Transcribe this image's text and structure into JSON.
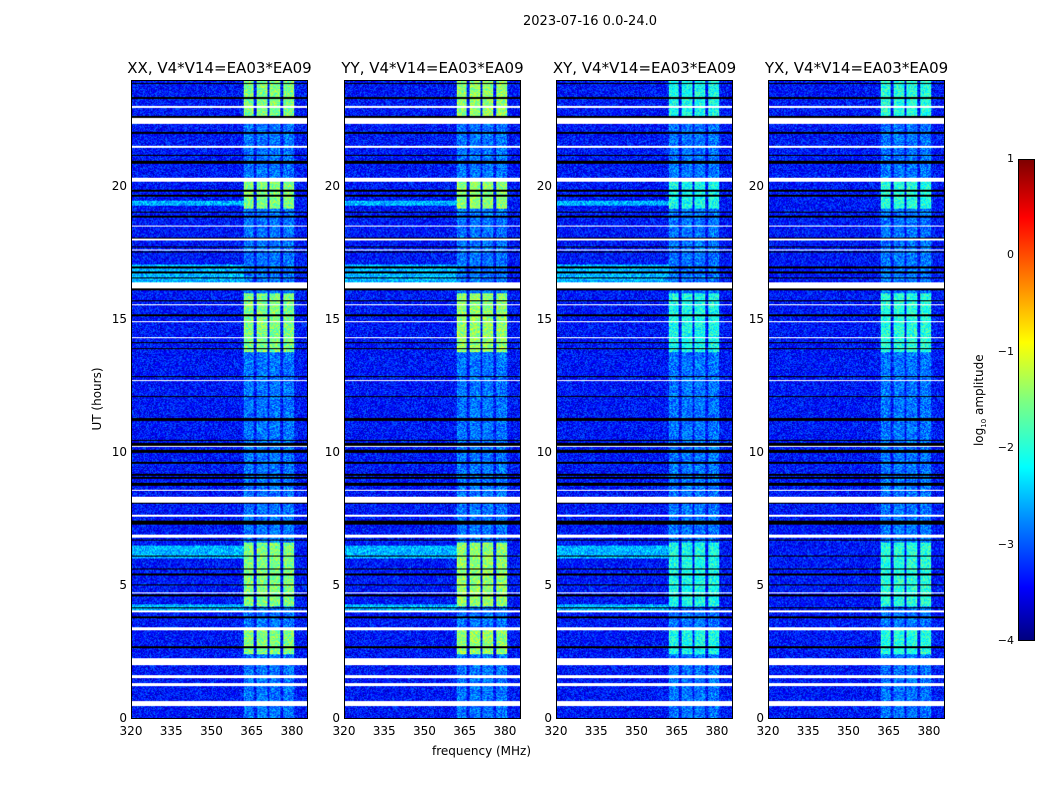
{
  "chart_data": {
    "type": "heatmap",
    "title": "2023-07-16 0.0-24.0",
    "ylabel": "UT (hours)",
    "xlabel": "frequency (MHz)",
    "xlim": [
      320,
      386
    ],
    "ylim": [
      0,
      24
    ],
    "xticks": [
      "320",
      "335",
      "350",
      "365",
      "380"
    ],
    "xtick_values": [
      320,
      335,
      350,
      365,
      380
    ],
    "yticks": [
      "0",
      "5",
      "10",
      "15",
      "20"
    ],
    "ytick_values": [
      0,
      5,
      10,
      15,
      20
    ],
    "panels": [
      {
        "title": "XX, V4*V14=EA03*EA09",
        "bright_level": -1.3
      },
      {
        "title": "YY, V4*V14=EA03*EA09",
        "bright_level": -1.2
      },
      {
        "title": "XY, V4*V14=EA03*EA09",
        "bright_level": -1.9
      },
      {
        "title": "YX, V4*V14=EA03*EA09",
        "bright_level": -1.8
      }
    ],
    "background_level": -3.3,
    "rfi_channels_mhz": [
      [
        362,
        366
      ],
      [
        367,
        371
      ],
      [
        372,
        376
      ],
      [
        377,
        381
      ]
    ],
    "rfi_bright_ut_hours": [
      [
        2.4,
        3.3
      ],
      [
        4.2,
        6.6
      ],
      [
        13.8,
        16.0
      ],
      [
        19.2,
        20.2
      ],
      [
        22.4,
        24.0
      ]
    ],
    "broadband_rfi_ut_hours": [
      [
        4.0,
        4.3
      ],
      [
        6.0,
        6.5
      ],
      [
        16.4,
        17.1
      ],
      [
        19.3,
        19.5
      ]
    ],
    "flagged_ut_hours": [
      [
        0.45,
        0.62
      ],
      [
        1.2,
        1.3
      ],
      [
        1.5,
        1.6
      ],
      [
        2.0,
        2.25
      ],
      [
        3.3,
        3.4
      ],
      [
        4.0,
        4.05
      ],
      [
        4.7,
        4.75
      ],
      [
        6.8,
        6.9
      ],
      [
        7.6,
        7.65
      ],
      [
        8.1,
        8.35
      ],
      [
        8.55,
        8.6
      ],
      [
        10.2,
        10.25
      ],
      [
        12.7,
        12.75
      ],
      [
        14.3,
        14.35
      ],
      [
        14.9,
        14.95
      ],
      [
        15.55,
        15.6
      ],
      [
        16.2,
        16.4
      ],
      [
        17.6,
        17.65
      ],
      [
        18.0,
        18.05
      ],
      [
        18.5,
        18.55
      ],
      [
        20.2,
        20.35
      ],
      [
        21.5,
        21.55
      ],
      [
        22.4,
        22.6
      ],
      [
        23.0,
        23.05
      ]
    ],
    "colorbar": {
      "label_prefix": "log",
      "label_sub": "10",
      "label_suffix": " amplitude",
      "range": [
        -4,
        1
      ],
      "ticks": [
        "−4",
        "−3",
        "−2",
        "−1",
        "0",
        "1"
      ],
      "tick_values": [
        -4,
        -3,
        -2,
        -1,
        0,
        1
      ],
      "colormap": "jet"
    }
  }
}
